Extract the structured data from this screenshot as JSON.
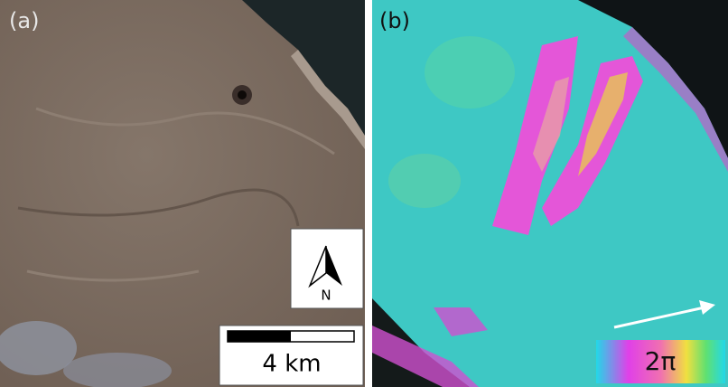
{
  "panels": [
    {
      "label": "(a)",
      "north_label": "N",
      "scale_label": "4 km"
    },
    {
      "label": "(b)",
      "colorbar_label": "2π"
    }
  ]
}
